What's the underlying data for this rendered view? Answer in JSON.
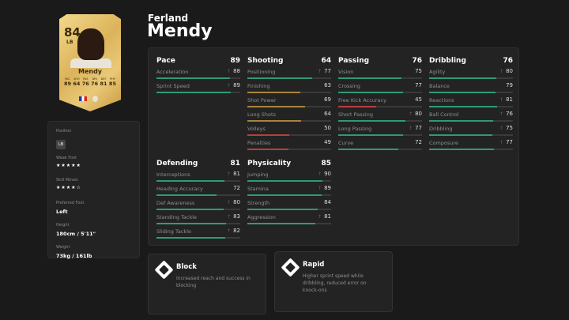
{
  "player": {
    "first_name": "Ferland",
    "last_name": "Mendy",
    "card_name": "Mendy",
    "overall": "84",
    "position": "LB",
    "card_stats": [
      {
        "l": "PAC",
        "v": "89"
      },
      {
        "l": "SHO",
        "v": "64"
      },
      {
        "l": "PAS",
        "v": "76"
      },
      {
        "l": "DRI",
        "v": "76"
      },
      {
        "l": "DEF",
        "v": "81"
      },
      {
        "l": "PHY",
        "v": "85"
      }
    ]
  },
  "info": {
    "position_label": "Position",
    "position": "LB",
    "weak_foot_label": "Weak Foot",
    "weak_foot": "★★★★★",
    "skill_moves_label": "Skill Moves",
    "skill_moves": "★★★★☆",
    "preferred_foot_label": "Preferred Foot",
    "preferred_foot": "Left",
    "height_label": "Height",
    "height": "180cm / 5'11\"",
    "weight_label": "Weight",
    "weight": "73kg / 161lb"
  },
  "colors": {
    "high": "#2f9a78",
    "mid": "#a8843c",
    "low": "#b53f3e"
  },
  "groups": [
    {
      "name": "Pace",
      "value": "89",
      "stats": [
        {
          "n": "Acceleration",
          "v": 88,
          "boost": true
        },
        {
          "n": "Sprint Speed",
          "v": 89,
          "boost": true
        }
      ]
    },
    {
      "name": "Shooting",
      "value": "64",
      "stats": [
        {
          "n": "Positioning",
          "v": 77,
          "boost": true
        },
        {
          "n": "Finishing",
          "v": 63
        },
        {
          "n": "Shot Power",
          "v": 69
        },
        {
          "n": "Long Shots",
          "v": 64
        },
        {
          "n": "Volleys",
          "v": 50
        },
        {
          "n": "Penalties",
          "v": 49
        }
      ]
    },
    {
      "name": "Passing",
      "value": "76",
      "stats": [
        {
          "n": "Vision",
          "v": 75
        },
        {
          "n": "Crossing",
          "v": 77
        },
        {
          "n": "Free Kick Accuracy",
          "v": 45
        },
        {
          "n": "Short Passing",
          "v": 80,
          "boost": true
        },
        {
          "n": "Long Passing",
          "v": 77,
          "boost": true
        },
        {
          "n": "Curve",
          "v": 72
        }
      ]
    },
    {
      "name": "Dribbling",
      "value": "76",
      "stats": [
        {
          "n": "Agility",
          "v": 80,
          "boost": true
        },
        {
          "n": "Balance",
          "v": 79
        },
        {
          "n": "Reactions",
          "v": 81,
          "boost": true
        },
        {
          "n": "Ball Control",
          "v": 76,
          "boost": true
        },
        {
          "n": "Dribbling",
          "v": 75,
          "boost": true
        },
        {
          "n": "Composure",
          "v": 77,
          "boost": true
        }
      ]
    },
    {
      "name": "Defending",
      "value": "81",
      "stats": [
        {
          "n": "Interceptions",
          "v": 81,
          "boost": true
        },
        {
          "n": "Heading Accuracy",
          "v": 72
        },
        {
          "n": "Def Awareness",
          "v": 80,
          "boost": true
        },
        {
          "n": "Standing Tackle",
          "v": 83,
          "boost": true
        },
        {
          "n": "Sliding Tackle",
          "v": 82,
          "boost": true
        }
      ]
    },
    {
      "name": "Physicality",
      "value": "85",
      "stats": [
        {
          "n": "Jumping",
          "v": 90,
          "boost": true
        },
        {
          "n": "Stamina",
          "v": 89,
          "boost": true
        },
        {
          "n": "Strength",
          "v": 84
        },
        {
          "n": "Aggression",
          "v": 81,
          "boost": true
        }
      ]
    }
  ],
  "boost_icon": "↑",
  "playstyles": [
    {
      "name": "Block",
      "desc": "Increased reach and success in blocking",
      "icon": "block-icon"
    },
    {
      "name": "Rapid",
      "desc": "Higher sprint speed while dribbling, reduced error on knock-ons",
      "icon": "rapid-icon"
    }
  ]
}
